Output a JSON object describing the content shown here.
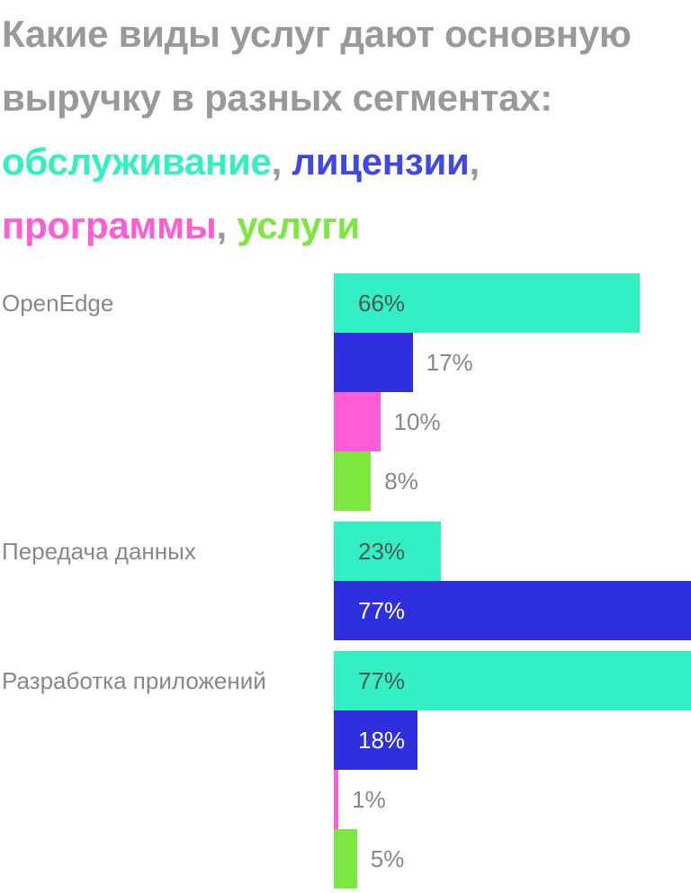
{
  "title": {
    "line1": "Какие виды услуг дают основную",
    "line2": "выручку в разных сегментах:",
    "legend": [
      {
        "text": "обслуживание",
        "color": "#32f0c4"
      },
      {
        "text": "лицензии",
        "color": "#3f48e3"
      },
      {
        "text": "программы",
        "color": "#ff5cd6"
      },
      {
        "text": "услуги",
        "color": "#7de742"
      }
    ],
    "separator": ","
  },
  "chart_data": {
    "type": "bar",
    "orientation": "horizontal",
    "xlim": [
      0,
      77
    ],
    "value_suffix": "%",
    "categories": [
      "OpenEdge",
      "Передача данных",
      "Разработка приложений"
    ],
    "series": [
      {
        "name": "обслуживание",
        "color": "#32f0c4",
        "values": [
          66,
          23,
          77
        ]
      },
      {
        "name": "лицензии",
        "color": "#2f2fe0",
        "values": [
          17,
          77,
          18
        ]
      },
      {
        "name": "программы",
        "color": "#ff5cd6",
        "values": [
          10,
          null,
          1
        ]
      },
      {
        "name": "услуги",
        "color": "#7de742",
        "values": [
          8,
          null,
          5
        ]
      }
    ]
  }
}
